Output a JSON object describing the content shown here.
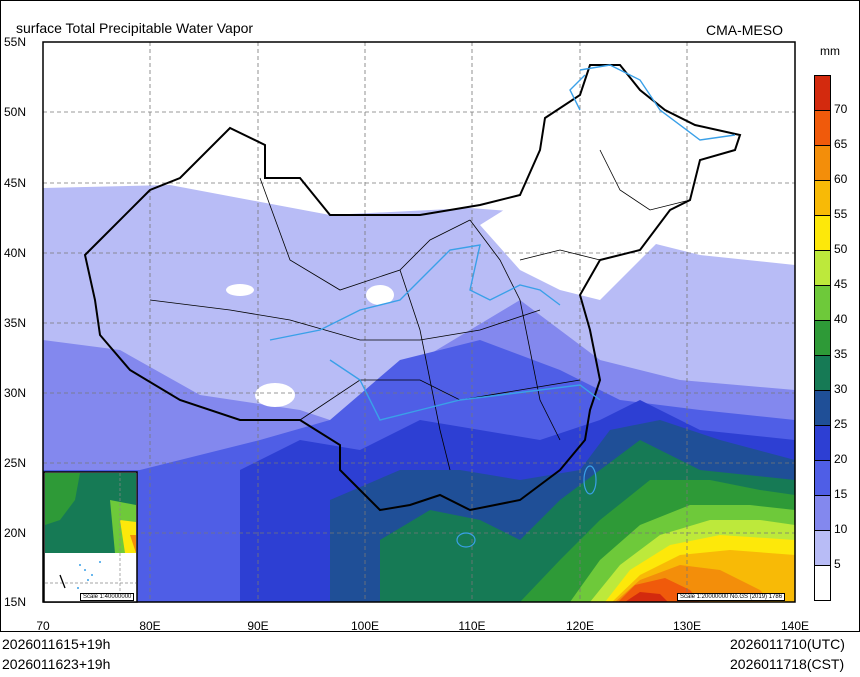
{
  "title": "surface Total Precipitable Water Vapor",
  "organization": "CMA-MESO",
  "legend": {
    "unit": "mm",
    "levels": [
      "70",
      "65",
      "60",
      "55",
      "50",
      "45",
      "40",
      "35",
      "30",
      "25",
      "20",
      "15",
      "10",
      "5"
    ],
    "colors": [
      "#d32a0e",
      "#f05a0b",
      "#f38e0a",
      "#f8ba06",
      "#fde80a",
      "#bde93b",
      "#6ec93a",
      "#2e9a37",
      "#167a55",
      "#1f4f97",
      "#2d3fd3",
      "#4f5ee6",
      "#8388ee",
      "#b8bcf6",
      "#ffffff"
    ]
  },
  "axes": {
    "lat_labels": [
      "55N",
      "50N",
      "45N",
      "40N",
      "35N",
      "30N",
      "25N",
      "20N",
      "15N"
    ],
    "lon_labels": [
      "70",
      "80E",
      "90E",
      "100E",
      "110E",
      "120E",
      "130E",
      "140E"
    ]
  },
  "inset": {
    "scale": "Scale 1:40000000"
  },
  "map_scale": "Scale 1:20000000 No.GS (2019) 1786",
  "footer": {
    "init_utc": "2026011615+19h",
    "init_cst": "2026011623+19h",
    "valid_utc": "2026011710(UTC)",
    "valid_cst": "2026011718(CST)"
  }
}
